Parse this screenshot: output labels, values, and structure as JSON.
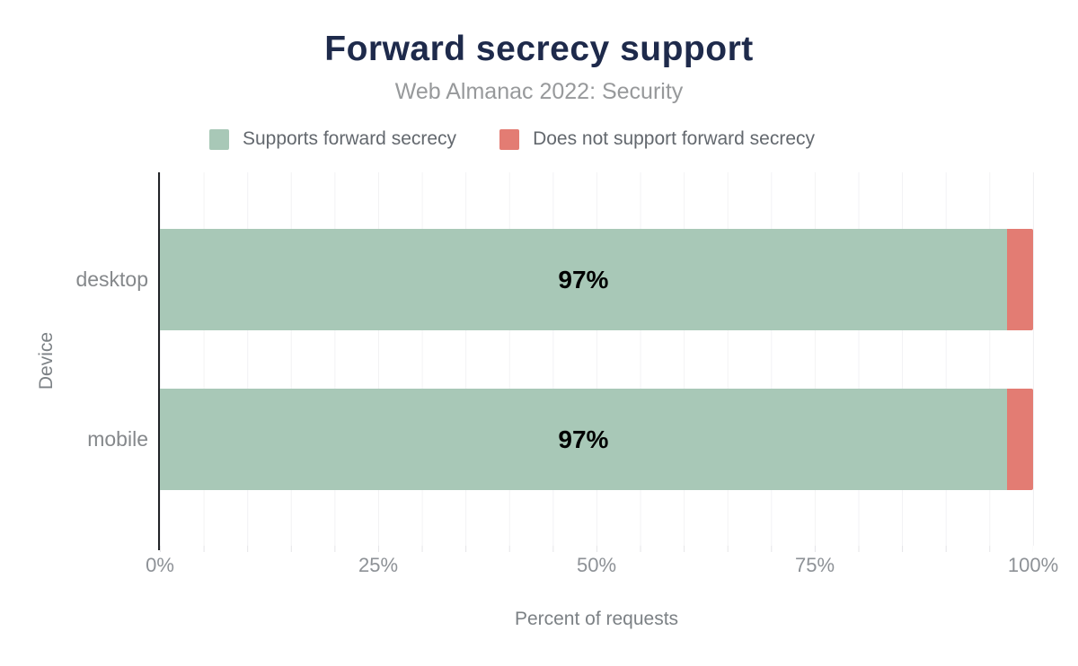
{
  "title": "Forward secrecy support",
  "subtitle": "Web Almanac 2022: Security",
  "legend": [
    {
      "label": "Supports forward secrecy",
      "color": "#a8c8b7"
    },
    {
      "label": "Does not support forward secrecy",
      "color": "#e37c73"
    }
  ],
  "chart_data": {
    "type": "bar",
    "orientation": "horizontal",
    "stacked": true,
    "title": "Forward secrecy support",
    "subtitle": "Web Almanac 2022: Security",
    "categories": [
      "desktop",
      "mobile"
    ],
    "series": [
      {
        "name": "Supports forward secrecy",
        "color": "#a8c8b7",
        "values": [
          97,
          97
        ]
      },
      {
        "name": "Does not support forward secrecy",
        "color": "#e37c73",
        "values": [
          3,
          3
        ]
      }
    ],
    "bar_labels": [
      "97%",
      "97%"
    ],
    "xlabel": "Percent of requests",
    "ylabel": "Device",
    "xlim": [
      0,
      100
    ],
    "x_ticks": [
      "0%",
      "25%",
      "50%",
      "75%",
      "100%"
    ],
    "grid": "vertical minor gridlines every 5%",
    "legend_position": "top-center"
  },
  "colors": {
    "title": "#1e2a4b",
    "subtitle": "#97999b",
    "axis_line": "#212327",
    "gridline": "#f2f2f4",
    "tick_label": "#8d9196",
    "bar_value_label": "#000000"
  }
}
